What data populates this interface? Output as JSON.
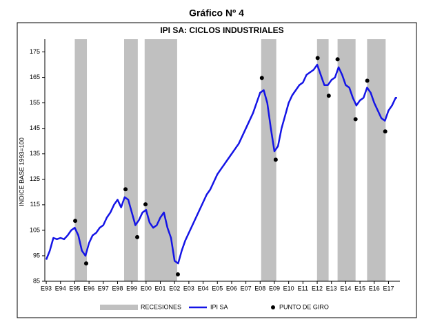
{
  "chart_data": {
    "type": "line",
    "heading": "Gráfico Nº 4",
    "title": "IPI SA: CICLOS INDUSTRIALES",
    "ylabel": "INDICE BASE 1993=100",
    "xlim": [
      1992.9,
      2017.8
    ],
    "ylim": [
      85,
      180
    ],
    "yticks": [
      85,
      95,
      105,
      115,
      125,
      135,
      145,
      155,
      165,
      175
    ],
    "xticks": [
      {
        "value": 1993,
        "label": "E93"
      },
      {
        "value": 1994,
        "label": "E94"
      },
      {
        "value": 1995,
        "label": "E95"
      },
      {
        "value": 1996,
        "label": "E96"
      },
      {
        "value": 1997,
        "label": "E97"
      },
      {
        "value": 1998,
        "label": "E98"
      },
      {
        "value": 1999,
        "label": "E99"
      },
      {
        "value": 2000,
        "label": "E00"
      },
      {
        "value": 2001,
        "label": "E01"
      },
      {
        "value": 2002,
        "label": "E02"
      },
      {
        "value": 2003,
        "label": "E03"
      },
      {
        "value": 2004,
        "label": "E04"
      },
      {
        "value": 2005,
        "label": "E05"
      },
      {
        "value": 2006,
        "label": "E06"
      },
      {
        "value": 2007,
        "label": "E07"
      },
      {
        "value": 2008,
        "label": "E08"
      },
      {
        "value": 2009,
        "label": "E09"
      },
      {
        "value": 2010,
        "label": "E10"
      },
      {
        "value": 2011,
        "label": "E11"
      },
      {
        "value": 2012,
        "label": "E12"
      },
      {
        "value": 2013,
        "label": "E13"
      },
      {
        "value": 2014,
        "label": "E14"
      },
      {
        "value": 2015,
        "label": "E15"
      },
      {
        "value": 2016,
        "label": "E16"
      },
      {
        "value": 2017,
        "label": "E17"
      }
    ],
    "grid": false,
    "legend": "bottom",
    "recessions": {
      "name": "RECESIONES",
      "color": "#c0c0c0",
      "ranges": [
        [
          1995.0,
          1995.85
        ],
        [
          1998.46,
          1999.42
        ],
        [
          1999.9,
          2002.18
        ],
        [
          2008.07,
          2009.13
        ],
        [
          2011.99,
          2012.8
        ],
        [
          2013.43,
          2014.69
        ],
        [
          2015.5,
          2016.8
        ]
      ]
    },
    "series": [
      {
        "name": "IPI SA",
        "color": "#1414e6",
        "x": [
          1993.0,
          1993.25,
          1993.5,
          1993.75,
          1994.0,
          1994.25,
          1994.5,
          1994.75,
          1995.0,
          1995.25,
          1995.5,
          1995.75,
          1996.0,
          1996.25,
          1996.5,
          1996.75,
          1997.0,
          1997.25,
          1997.5,
          1997.75,
          1998.0,
          1998.25,
          1998.5,
          1998.75,
          1999.0,
          1999.25,
          1999.5,
          1999.75,
          2000.0,
          2000.25,
          2000.5,
          2000.75,
          2001.0,
          2001.25,
          2001.5,
          2001.75,
          2002.0,
          2002.25,
          2002.5,
          2002.75,
          2003.0,
          2003.25,
          2003.5,
          2003.75,
          2004.0,
          2004.25,
          2004.5,
          2004.75,
          2005.0,
          2005.25,
          2005.5,
          2005.75,
          2006.0,
          2006.25,
          2006.5,
          2006.75,
          2007.0,
          2007.25,
          2007.5,
          2007.75,
          2008.0,
          2008.25,
          2008.5,
          2008.75,
          2009.0,
          2009.25,
          2009.5,
          2009.75,
          2010.0,
          2010.25,
          2010.5,
          2010.75,
          2011.0,
          2011.25,
          2011.5,
          2011.75,
          2012.0,
          2012.25,
          2012.5,
          2012.75,
          2013.0,
          2013.25,
          2013.5,
          2013.75,
          2014.0,
          2014.25,
          2014.5,
          2014.75,
          2015.0,
          2015.25,
          2015.5,
          2015.75,
          2016.0,
          2016.25,
          2016.5,
          2016.75,
          2017.0,
          2017.25,
          2017.5,
          2017.6
        ],
        "values": [
          93.5,
          97,
          102,
          101.5,
          102,
          101.5,
          103,
          105,
          106,
          103,
          97,
          95,
          100,
          103,
          104,
          106,
          107,
          110,
          112,
          115,
          117,
          114,
          118,
          117,
          112,
          107,
          109,
          112,
          113,
          108,
          106,
          107,
          110,
          112,
          106,
          102,
          93,
          92,
          97,
          101,
          104,
          107,
          110,
          113,
          116,
          119,
          121,
          124,
          127,
          129,
          131,
          133,
          135,
          137,
          139,
          142,
          145,
          148,
          151,
          155,
          159,
          160,
          155,
          145,
          136,
          138,
          145,
          150,
          155,
          158,
          160,
          162,
          163,
          166,
          167,
          168,
          170,
          166,
          162,
          162,
          164,
          165,
          169,
          166,
          162,
          161,
          157,
          154,
          156,
          157,
          161,
          159,
          155,
          152,
          149,
          148,
          152,
          154,
          157,
          157
        ]
      }
    ],
    "turning_points": {
      "name": "PUNTO DE GIRO",
      "color": "#000000",
      "x": [
        1995.03,
        1995.8,
        1998.56,
        1999.38,
        1999.96,
        2002.23,
        2008.12,
        2009.09,
        2012.03,
        2012.81,
        2013.43,
        2014.69,
        2015.51,
        2016.77
      ],
      "values": [
        108.7,
        92.0,
        121.1,
        102.3,
        115.2,
        87.7,
        164.8,
        132.7,
        172.6,
        157.8,
        172.1,
        148.6,
        163.7,
        143.8
      ]
    }
  }
}
